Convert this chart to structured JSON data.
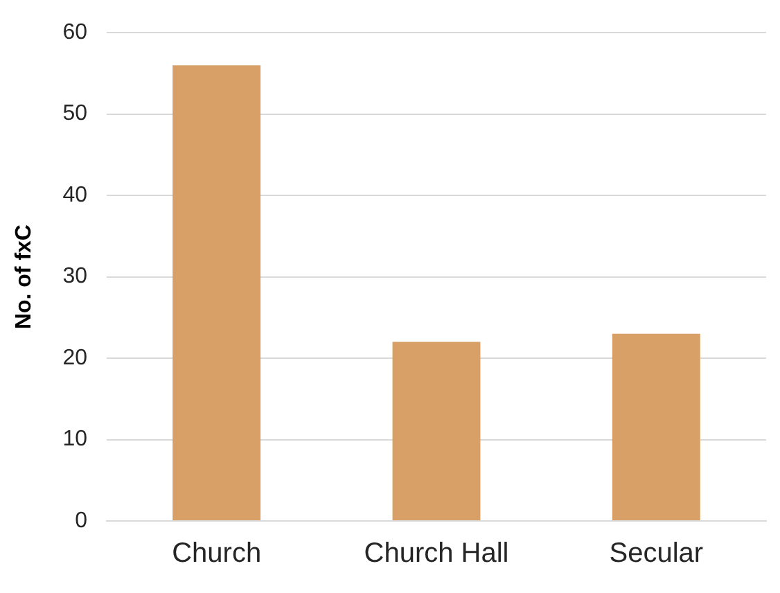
{
  "chart_data": {
    "type": "bar",
    "ylabel": "No. of fxC",
    "categories": [
      "Church",
      "Church Hall",
      "Secular"
    ],
    "values": [
      56,
      22,
      23
    ],
    "color": "#d8a067",
    "ylim": [
      0,
      60
    ],
    "yticks": [
      0,
      10,
      20,
      30,
      40,
      50,
      60
    ],
    "grid": "y",
    "legend": false
  }
}
